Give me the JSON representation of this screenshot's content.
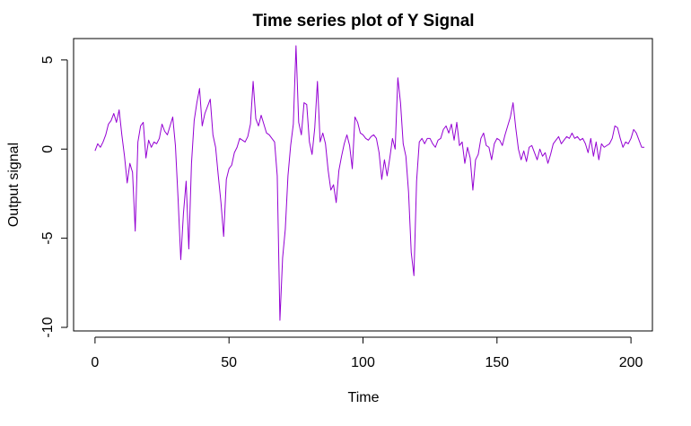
{
  "chart_data": {
    "type": "line",
    "title": "Time series plot of Y Signal",
    "xlabel": "Time",
    "ylabel": "Output signal",
    "xlim": [
      -8,
      208
    ],
    "ylim": [
      -10.2,
      6.2
    ],
    "x_ticks": [
      0,
      50,
      100,
      150,
      200
    ],
    "y_ticks": [
      -10,
      -5,
      0,
      5
    ],
    "x_tick_labels": [
      "0",
      "50",
      "100",
      "150",
      "200"
    ],
    "y_tick_labels": [
      "-10",
      "-5",
      "0",
      "5"
    ],
    "grid": false,
    "line_color": "#9400D3",
    "x_start": 0,
    "x_step": 1,
    "values": [
      -0.1,
      0.3,
      0.1,
      0.4,
      0.8,
      1.4,
      1.6,
      2.0,
      1.5,
      2.2,
      0.8,
      -0.4,
      -1.9,
      -0.8,
      -1.3,
      -4.6,
      0.4,
      1.3,
      1.5,
      -0.5,
      0.5,
      0.1,
      0.4,
      0.3,
      0.6,
      1.4,
      1.0,
      0.8,
      1.3,
      1.8,
      0.2,
      -2.8,
      -6.2,
      -3.6,
      -1.8,
      -5.6,
      -0.8,
      1.6,
      2.6,
      3.4,
      1.3,
      2.0,
      2.4,
      2.8,
      0.8,
      0.1,
      -1.5,
      -3.0,
      -4.9,
      -1.7,
      -1.1,
      -0.9,
      -0.2,
      0.1,
      0.6,
      0.5,
      0.4,
      0.7,
      1.4,
      3.8,
      1.7,
      1.3,
      1.9,
      1.4,
      0.9,
      0.8,
      0.6,
      0.4,
      -1.5,
      -9.6,
      -6.1,
      -4.5,
      -1.5,
      0.2,
      1.4,
      5.8,
      1.5,
      0.8,
      2.6,
      2.5,
      0.4,
      -0.3,
      1.2,
      3.8,
      0.4,
      0.9,
      0.3,
      -1.2,
      -2.3,
      -2.0,
      -3.0,
      -1.2,
      -0.4,
      0.3,
      0.8,
      0.2,
      -1.1,
      1.8,
      1.5,
      0.9,
      0.8,
      0.6,
      0.5,
      0.7,
      0.8,
      0.6,
      -0.2,
      -1.7,
      -0.6,
      -1.5,
      -0.5,
      0.6,
      0.0,
      4.0,
      2.6,
      0.3,
      -0.4,
      -2.4,
      -5.8,
      -7.1,
      -1.8,
      0.4,
      0.6,
      0.3,
      0.6,
      0.6,
      0.3,
      0.1,
      0.5,
      0.6,
      1.1,
      1.3,
      0.9,
      1.4,
      0.5,
      1.5,
      0.2,
      0.4,
      -0.8,
      0.1,
      -0.5,
      -2.3,
      -0.6,
      -0.3,
      0.6,
      0.9,
      0.2,
      0.1,
      -0.6,
      0.3,
      0.6,
      0.5,
      0.2,
      0.8,
      1.3,
      1.8,
      2.6,
      1.2,
      0.0,
      -0.6,
      -0.1,
      -0.7,
      0.1,
      0.2,
      -0.2,
      -0.6,
      0.0,
      -0.4,
      -0.2,
      -0.8,
      -0.3,
      0.3,
      0.5,
      0.7,
      0.3,
      0.5,
      0.7,
      0.6,
      0.9,
      0.6,
      0.7,
      0.5,
      0.6,
      0.3,
      -0.2,
      0.6,
      -0.4,
      0.4,
      -0.6,
      0.3,
      0.1,
      0.2,
      0.3,
      0.6,
      1.3,
      1.2,
      0.6,
      0.1,
      0.4,
      0.3,
      0.6,
      1.1,
      0.9,
      0.5,
      0.1,
      0.1
    ]
  }
}
